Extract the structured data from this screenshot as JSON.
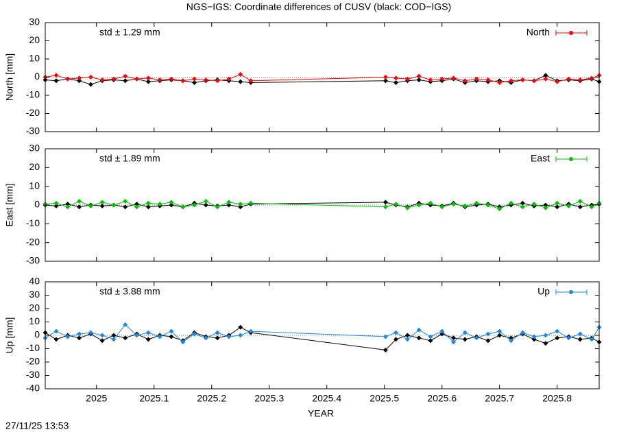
{
  "title": "NGS−IGS: Coordinate differences of CUSV (black: COD−IGS)",
  "xlabel": "YEAR",
  "timestamp": "27/11/25 13:53",
  "chart_data": [
    {
      "type": "line",
      "ylabel": "North [mm]",
      "annotation": "std ± 1.29 mm",
      "legend": "upper right",
      "xlim": [
        2024.911,
        2025.873
      ],
      "xticks": [
        2025,
        2025.1,
        2025.2,
        2025.3,
        2025.4,
        2025.5,
        2025.6,
        2025.7,
        2025.8
      ],
      "ylim": [
        -30,
        30
      ],
      "yticks": [
        -30,
        -20,
        -10,
        0,
        10,
        20,
        30
      ],
      "x": [
        2024.911,
        2024.93,
        2024.95,
        2024.97,
        2024.99,
        2025.01,
        2025.03,
        2025.05,
        2025.07,
        2025.09,
        2025.11,
        2025.13,
        2025.15,
        2025.17,
        2025.19,
        2025.21,
        2025.23,
        2025.25,
        2025.268,
        2025.502,
        2025.52,
        2025.54,
        2025.56,
        2025.58,
        2025.6,
        2025.62,
        2025.64,
        2025.66,
        2025.68,
        2025.7,
        2025.72,
        2025.74,
        2025.76,
        2025.78,
        2025.8,
        2025.82,
        2025.84,
        2025.86,
        2025.873
      ],
      "series": [
        {
          "color": "#000000",
          "values": [
            -1.5,
            -2,
            -1,
            -2,
            -4,
            -2,
            -1.5,
            -2,
            -1,
            -2.5,
            -2,
            -1.5,
            -2,
            -3,
            -2,
            -1.5,
            -2,
            -2.5,
            -3,
            -2,
            -3,
            -2,
            -1.5,
            -2.5,
            -2,
            -1,
            -3,
            -2,
            -2.5,
            -2,
            -3,
            -1.5,
            -2,
            1,
            -2,
            -1.5,
            -2,
            -1,
            -2.5
          ]
        },
        {
          "name": "North",
          "color": "#ff0000",
          "values": [
            0,
            1,
            -1,
            -0.5,
            0,
            -1.5,
            -1,
            0.5,
            -1,
            -0.5,
            -1.5,
            -1,
            -2,
            -1,
            -1.5,
            -2,
            -1,
            1.5,
            -2,
            0,
            -0.5,
            -1,
            0.5,
            -1.5,
            -1,
            -0.5,
            -2,
            -1,
            -1.5,
            -3,
            -2,
            -1.5,
            -2,
            -1,
            -2.5,
            -1,
            -1.5,
            -0.5,
            1
          ]
        }
      ]
    },
    {
      "type": "line",
      "ylabel": "East [mm]",
      "annotation": "std ± 1.89 mm",
      "legend": "upper right",
      "xlim": [
        2024.911,
        2025.873
      ],
      "xticks": [
        2025,
        2025.1,
        2025.2,
        2025.3,
        2025.4,
        2025.5,
        2025.6,
        2025.7,
        2025.8
      ],
      "ylim": [
        -30,
        30
      ],
      "yticks": [
        -30,
        -20,
        -10,
        0,
        10,
        20,
        30
      ],
      "x": [
        2024.911,
        2024.93,
        2024.95,
        2024.97,
        2024.99,
        2025.01,
        2025.03,
        2025.05,
        2025.07,
        2025.09,
        2025.11,
        2025.13,
        2025.15,
        2025.17,
        2025.19,
        2025.21,
        2025.23,
        2025.25,
        2025.268,
        2025.502,
        2025.52,
        2025.54,
        2025.56,
        2025.58,
        2025.6,
        2025.62,
        2025.64,
        2025.66,
        2025.68,
        2025.7,
        2025.72,
        2025.74,
        2025.76,
        2025.78,
        2025.8,
        2025.82,
        2025.84,
        2025.86,
        2025.873
      ],
      "series": [
        {
          "color": "#000000",
          "values": [
            0,
            -0.5,
            0.5,
            -1,
            0,
            -0.5,
            0,
            -1,
            0.5,
            -1,
            -0.5,
            0,
            -1,
            1,
            0,
            -0.5,
            0,
            -1,
            0.5,
            1.5,
            0,
            -1,
            1,
            0,
            -0.5,
            1,
            -1,
            0,
            0.5,
            -1,
            0,
            1,
            -0.5,
            0,
            -1,
            0.5,
            -1,
            0,
            0.5
          ]
        },
        {
          "name": "East",
          "color": "#00c000",
          "values": [
            0.5,
            1,
            -1,
            2,
            -0.5,
            1.5,
            0,
            2,
            -1,
            1,
            0.5,
            1.5,
            -1,
            0,
            2,
            -1,
            1.5,
            0.5,
            1,
            -1,
            0.5,
            -1.5,
            0,
            1,
            -1,
            0.5,
            -0.5,
            1,
            0,
            -2,
            1,
            -1,
            0.5,
            -1.5,
            1,
            -0.5,
            2,
            -1,
            1
          ]
        }
      ]
    },
    {
      "type": "line",
      "ylabel": "Up [mm]",
      "annotation": "std ± 3.88 mm",
      "legend": "upper right",
      "xlim": [
        2024.911,
        2025.873
      ],
      "xticks": [
        2025,
        2025.1,
        2025.2,
        2025.3,
        2025.4,
        2025.5,
        2025.6,
        2025.7,
        2025.8
      ],
      "ylim": [
        -40,
        40
      ],
      "yticks": [
        -40,
        -30,
        -20,
        -10,
        0,
        10,
        20,
        30,
        40
      ],
      "x": [
        2024.911,
        2024.93,
        2024.95,
        2024.97,
        2024.99,
        2025.01,
        2025.03,
        2025.05,
        2025.07,
        2025.09,
        2025.11,
        2025.13,
        2025.15,
        2025.17,
        2025.19,
        2025.21,
        2025.23,
        2025.25,
        2025.268,
        2025.502,
        2025.52,
        2025.54,
        2025.56,
        2025.58,
        2025.6,
        2025.62,
        2025.64,
        2025.66,
        2025.68,
        2025.7,
        2025.72,
        2025.74,
        2025.76,
        2025.78,
        2025.8,
        2025.82,
        2025.84,
        2025.86,
        2025.873
      ],
      "series": [
        {
          "color": "#000000",
          "values": [
            2,
            -3,
            0,
            -2,
            1,
            -4,
            0,
            -2,
            1,
            -3,
            0,
            -1,
            -4,
            2,
            -1,
            -2,
            0,
            6,
            2,
            -11,
            -3,
            0,
            -2,
            -4,
            1,
            -2,
            -3,
            -1,
            -4,
            0,
            -2,
            1,
            -3,
            -6,
            -2,
            -1,
            -3,
            -2,
            -5
          ]
        },
        {
          "name": "Up",
          "color": "#1e88e5",
          "values": [
            -2,
            3,
            -1,
            1,
            2,
            0,
            -3,
            8,
            0,
            2,
            -1,
            3,
            -5,
            1,
            -2,
            2,
            -1,
            0,
            3,
            -1,
            2,
            -3,
            4,
            -1,
            3,
            -5,
            2,
            -2,
            1,
            3,
            -4,
            2,
            -1,
            0,
            3,
            -2,
            1,
            -3,
            6
          ]
        }
      ]
    }
  ]
}
